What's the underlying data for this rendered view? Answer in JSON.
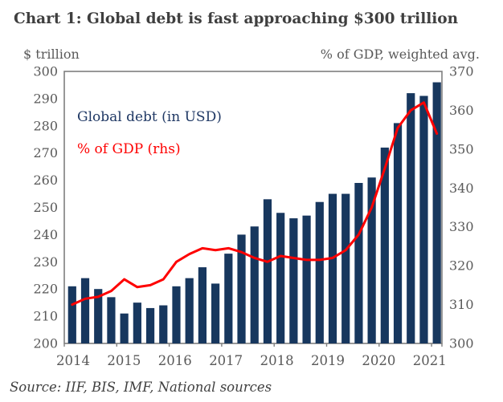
{
  "title": "Chart 1: Global debt is fast approaching $300 trillion",
  "left_axis_caption": "$ trillion",
  "right_axis_caption": "% of GDP, weighted avg.",
  "legend": {
    "debt_label": "Global debt (in USD)",
    "gdp_label": "% of GDP (rhs)"
  },
  "source": "Source: IIF, BIS, IMF, National sources",
  "colors": {
    "bar": "#17375e",
    "line": "#fe0000",
    "title_text": "#3f3f3f",
    "axis_text": "#595959",
    "legend_debt_text": "#1f3864",
    "legend_gdp_text": "#fe0000",
    "plot_border": "#7f7f7f",
    "source_text": "#404040",
    "background": "#ffffff"
  },
  "chart_data": {
    "type": "bar",
    "title": "Chart 1: Global debt is fast approaching $300 trillion",
    "xlabel": "",
    "ylabel_left": "$ trillion",
    "ylabel_right": "% of GDP, weighted avg.",
    "legend_position": "top-left-inside",
    "grid": false,
    "categories": [
      "2014Q1",
      "2014Q2",
      "2014Q3",
      "2014Q4",
      "2015Q1",
      "2015Q2",
      "2015Q3",
      "2015Q4",
      "2016Q1",
      "2016Q2",
      "2016Q3",
      "2016Q4",
      "2017Q1",
      "2017Q2",
      "2017Q3",
      "2017Q4",
      "2018Q1",
      "2018Q2",
      "2018Q3",
      "2018Q4",
      "2019Q1",
      "2019Q2",
      "2019Q3",
      "2019Q4",
      "2020Q1",
      "2020Q2",
      "2020Q3",
      "2020Q4",
      "2021Q1"
    ],
    "x_year_labels": [
      "2014",
      "2015",
      "2016",
      "2017",
      "2018",
      "2019",
      "2020",
      "2021"
    ],
    "left_axis": {
      "min": 200,
      "max": 300,
      "step": 10
    },
    "right_axis": {
      "min": 300,
      "max": 370,
      "step": 10
    },
    "series": [
      {
        "name": "Global debt (in USD)",
        "type": "bar",
        "axis": "left",
        "values": [
          221,
          224,
          220,
          217,
          211,
          215,
          213,
          214,
          221,
          224,
          228,
          222,
          233,
          240,
          243,
          253,
          248,
          246,
          247,
          252,
          255,
          255,
          259,
          261,
          272,
          281,
          292,
          291,
          296
        ]
      },
      {
        "name": "% of GDP (rhs)",
        "type": "line",
        "axis": "right",
        "values": [
          310,
          311.5,
          312,
          313.5,
          316.5,
          314.5,
          315,
          316.5,
          321,
          323,
          324.5,
          324,
          324.5,
          323.5,
          322,
          321,
          322.5,
          322,
          321.5,
          321.5,
          322,
          324,
          328,
          335,
          345,
          355.5,
          360,
          362,
          354
        ]
      }
    ]
  }
}
